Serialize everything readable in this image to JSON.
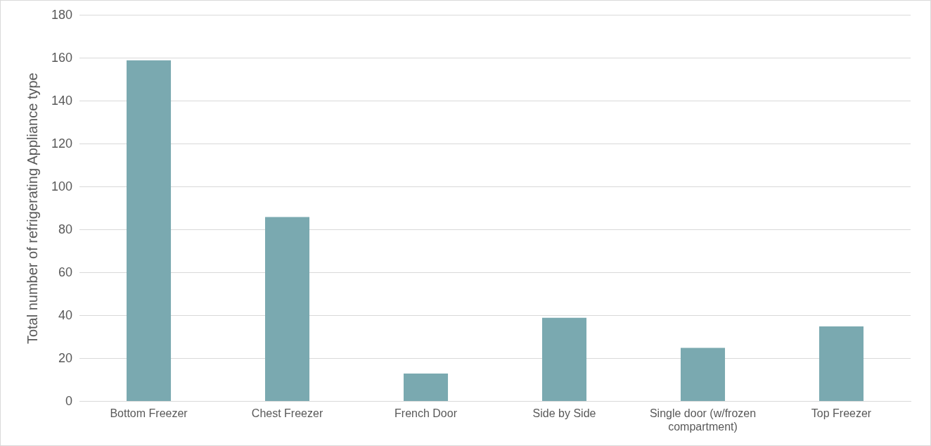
{
  "chart_data": {
    "type": "bar",
    "ylabel": "Total number of refrigerating Appliance type",
    "categories": [
      "Bottom Freezer",
      "Chest Freezer",
      "French Door",
      "Side by Side",
      "Single door (w/frozen compartment)",
      "Top Freezer"
    ],
    "values": [
      159,
      86,
      13,
      39,
      25,
      35
    ],
    "color": "#7aa9b0",
    "ylim": [
      0,
      180
    ],
    "yticks": [
      0,
      20,
      40,
      60,
      80,
      100,
      120,
      140,
      160,
      180
    ],
    "grid": "y"
  }
}
